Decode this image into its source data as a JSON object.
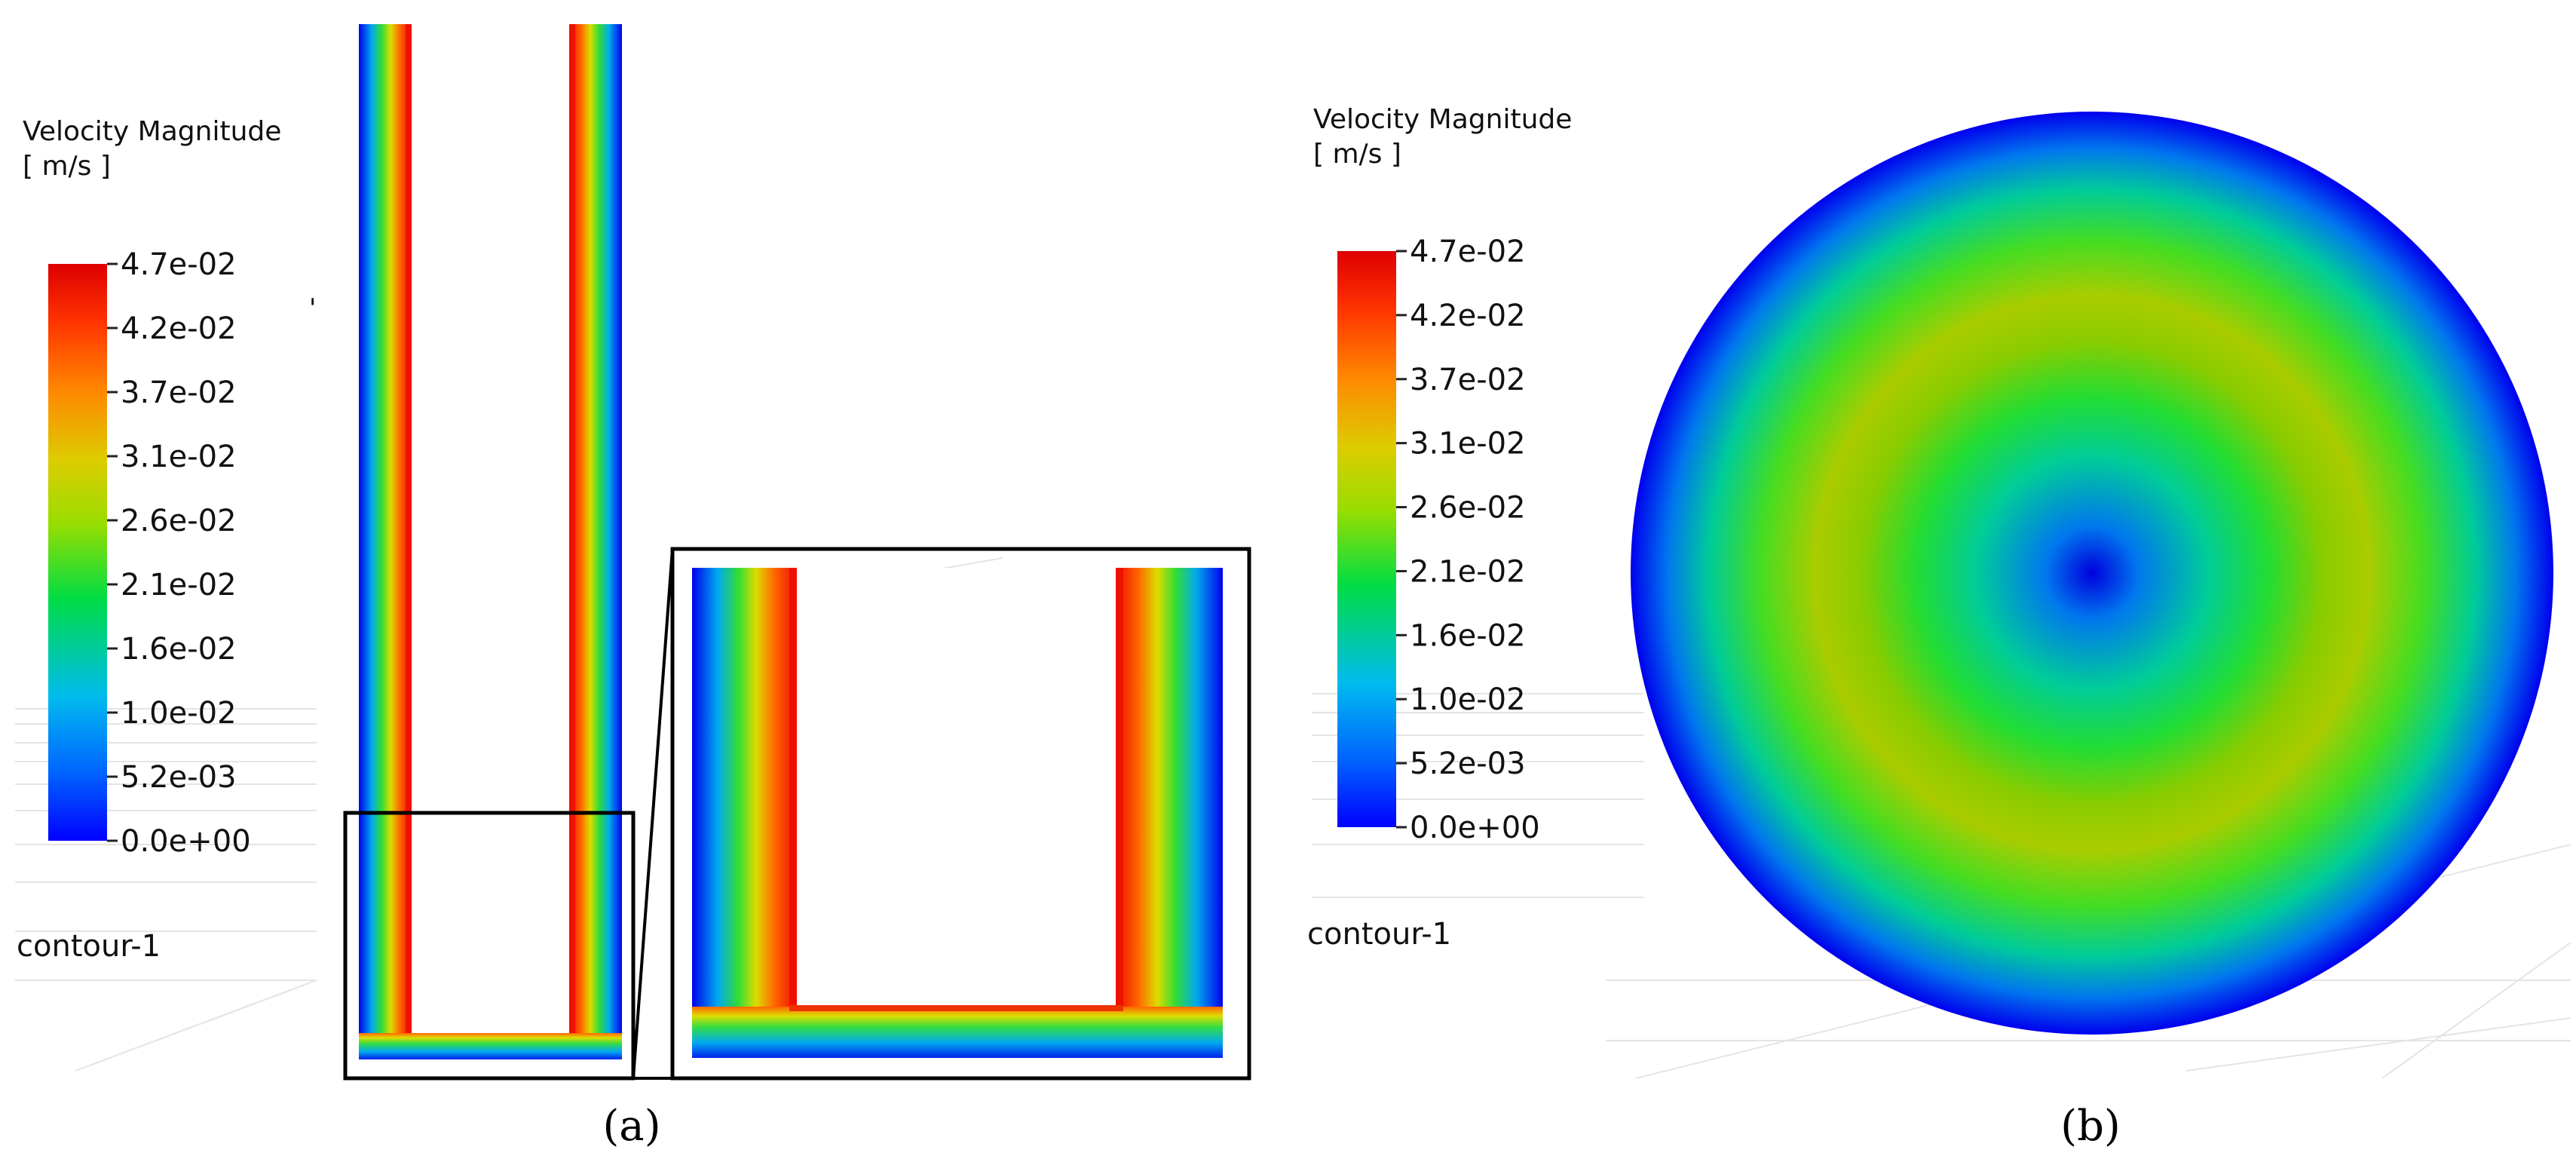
{
  "panel_a": {
    "legend": {
      "title": "Velocity Magnitude",
      "unit": "[ m/s ]",
      "ticks": [
        "4.7e-02",
        "4.2e-02",
        "3.7e-02",
        "3.1e-02",
        "2.6e-02",
        "2.1e-02",
        "1.6e-02",
        "1.0e-02",
        "5.2e-03",
        "0.0e+00"
      ],
      "name": "contour-1"
    },
    "caption": "(a)"
  },
  "panel_b": {
    "legend": {
      "title": "Velocity Magnitude",
      "unit": "[ m/s ]",
      "ticks": [
        "4.7e-02",
        "4.2e-02",
        "3.7e-02",
        "3.1e-02",
        "2.6e-02",
        "2.1e-02",
        "1.6e-02",
        "1.0e-02",
        "5.2e-03",
        "0.0e+00"
      ],
      "name": "contour-1"
    },
    "caption": "(b)"
  },
  "colormap": [
    "#0000ff",
    "#0077ff",
    "#00ccdd",
    "#00dd55",
    "#88dd00",
    "#dddd00",
    "#ffaa00",
    "#ff5500",
    "#dd0000"
  ]
}
